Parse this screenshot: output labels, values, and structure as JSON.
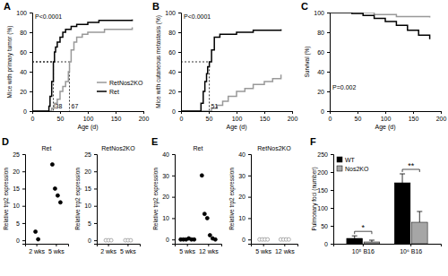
{
  "chart_data": [
    {
      "type": "line",
      "panel_label": "A",
      "x_label": "Age (d)",
      "y_label": "Mice with primary tumor (%)",
      "xlim": [
        0,
        200
      ],
      "ylim": [
        0,
        100
      ],
      "xticks": [
        0,
        50,
        100,
        150,
        200
      ],
      "yticks": [
        0,
        20,
        40,
        60,
        80,
        100
      ],
      "legend": "lower right",
      "annotations": [
        {
          "text": "P<0.0001",
          "x": 5,
          "y": 94
        }
      ],
      "medians": [
        {
          "x": 38,
          "y": 50
        },
        {
          "x": 67,
          "y": 50
        }
      ],
      "series": [
        {
          "name": "RetNos2KO",
          "color": "#999999",
          "line_style": "step",
          "x": [
            0,
            30,
            35,
            40,
            45,
            50,
            55,
            60,
            65,
            67,
            70,
            75,
            80,
            90,
            100,
            130,
            180
          ],
          "values": [
            0,
            0,
            3,
            8,
            12,
            20,
            25,
            30,
            40,
            50,
            62,
            70,
            75,
            78,
            80,
            83,
            85
          ]
        },
        {
          "name": "Ret",
          "color": "#000000",
          "line_style": "step",
          "x": [
            0,
            25,
            30,
            32,
            35,
            38,
            40,
            42,
            45,
            50,
            55,
            60,
            70,
            80,
            100,
            120,
            180
          ],
          "values": [
            0,
            0,
            5,
            15,
            30,
            50,
            60,
            65,
            70,
            75,
            80,
            83,
            86,
            88,
            90,
            92,
            93
          ]
        }
      ]
    },
    {
      "type": "line",
      "panel_label": "B",
      "x_label": "Age (d)",
      "y_label": "Mice with cutaneous metastasis (%)",
      "xlim": [
        0,
        200
      ],
      "ylim": [
        0,
        100
      ],
      "xticks": [
        0,
        50,
        100,
        150,
        200
      ],
      "yticks": [
        0,
        20,
        40,
        60,
        80,
        100
      ],
      "annotations": [
        {
          "text": "P<0.0001",
          "x": 5,
          "y": 94
        }
      ],
      "medians": [
        {
          "x": 51,
          "y": 50
        }
      ],
      "series": [
        {
          "name": "RetNos2KO",
          "color": "#999999",
          "line_style": "step",
          "x": [
            0,
            45,
            55,
            65,
            75,
            85,
            100,
            115,
            130,
            150,
            165,
            180
          ],
          "values": [
            0,
            0,
            3,
            6,
            10,
            15,
            20,
            23,
            27,
            30,
            33,
            37
          ]
        },
        {
          "name": "Ret",
          "color": "#000000",
          "line_style": "step",
          "x": [
            0,
            33,
            36,
            40,
            43,
            46,
            48,
            51,
            55,
            60,
            70,
            100,
            130,
            180
          ],
          "values": [
            0,
            0,
            8,
            20,
            30,
            38,
            45,
            50,
            62,
            75,
            78,
            80,
            82,
            83
          ]
        }
      ]
    },
    {
      "type": "line",
      "panel_label": "C",
      "x_label": "Age (d)",
      "y_label": "Survival (%)",
      "xlim": [
        0,
        200
      ],
      "ylim": [
        0,
        100
      ],
      "xticks": [
        0,
        50,
        100,
        150,
        200
      ],
      "yticks": [
        0,
        20,
        40,
        60,
        80,
        100
      ],
      "annotations": [
        {
          "text": "P=0.002",
          "x": 5,
          "y": 22
        }
      ],
      "series": [
        {
          "name": "RetNos2KO",
          "color": "#999999",
          "line_style": "step",
          "x": [
            0,
            80,
            120,
            180
          ],
          "values": [
            100,
            98,
            96,
            95
          ]
        },
        {
          "name": "Ret",
          "color": "#000000",
          "line_style": "step",
          "x": [
            0,
            40,
            60,
            80,
            100,
            120,
            140,
            160,
            180
          ],
          "values": [
            100,
            99,
            97,
            94,
            91,
            87,
            82,
            77,
            73
          ]
        }
      ]
    },
    {
      "type": "scatter",
      "panel_label": "D",
      "title": "Ret",
      "y_label": "Relative trp2 expression",
      "categories": [
        "2 wks",
        "5 wks"
      ],
      "ylim": [
        -1,
        25
      ],
      "yticks": [
        0,
        5,
        10,
        15,
        20,
        25
      ],
      "color": "#000000",
      "marker": "circle",
      "values": [
        [
          2.5,
          0.3
        ],
        [
          22,
          15,
          13,
          11
        ]
      ]
    },
    {
      "type": "scatter",
      "title": "RetNos2KO",
      "y_label": "Relative trp2 expression",
      "categories": [
        "2 wks",
        "5 wks"
      ],
      "ylim": [
        -1,
        25
      ],
      "yticks": [
        0,
        5,
        10,
        15,
        20,
        25
      ],
      "color": "#999999",
      "marker": "open-circle",
      "values": [
        [
          0,
          0,
          0
        ],
        [
          0,
          0,
          0
        ]
      ]
    },
    {
      "type": "scatter",
      "panel_label": "E",
      "title": "Ret",
      "y_label": "Relative trp2 expression",
      "categories": [
        "5 wks",
        "12 wks"
      ],
      "ylim": [
        -2,
        40
      ],
      "yticks": [
        0,
        10,
        20,
        30,
        40
      ],
      "color": "#000000",
      "marker": "circle",
      "values": [
        [
          0,
          0,
          0,
          0.5,
          0,
          0
        ],
        [
          30,
          12,
          10,
          2,
          0.5,
          0
        ]
      ]
    },
    {
      "type": "scatter",
      "title": "RetNos2KO",
      "y_label": "Relative trp2 expression",
      "categories": [
        "5 wks",
        "12 wks"
      ],
      "ylim": [
        -2,
        40
      ],
      "yticks": [
        0,
        10,
        20,
        30,
        40
      ],
      "color": "#999999",
      "marker": "open-circle",
      "values": [
        [
          0,
          0,
          0,
          0
        ],
        [
          0,
          0,
          0,
          0
        ]
      ]
    },
    {
      "type": "bar",
      "panel_label": "F",
      "y_label": "Pulmonary foci (number)",
      "categories": [
        "10⁵ B16",
        "10⁶ B16"
      ],
      "ylim": [
        0,
        250
      ],
      "yticks": [
        0,
        50,
        100,
        150,
        200,
        250
      ],
      "legend": "upper left",
      "annotations": [
        {
          "text": "*",
          "category": 0
        },
        {
          "text": "**",
          "category": 1
        }
      ],
      "series": [
        {
          "name": "WT",
          "color": "#000000",
          "values": [
            15,
            170
          ],
          "errors": [
            7,
            25
          ]
        },
        {
          "name": "Nos2KO",
          "color": "#a6a6a6",
          "values": [
            5,
            60
          ],
          "errors": [
            5,
            30
          ]
        }
      ]
    }
  ]
}
